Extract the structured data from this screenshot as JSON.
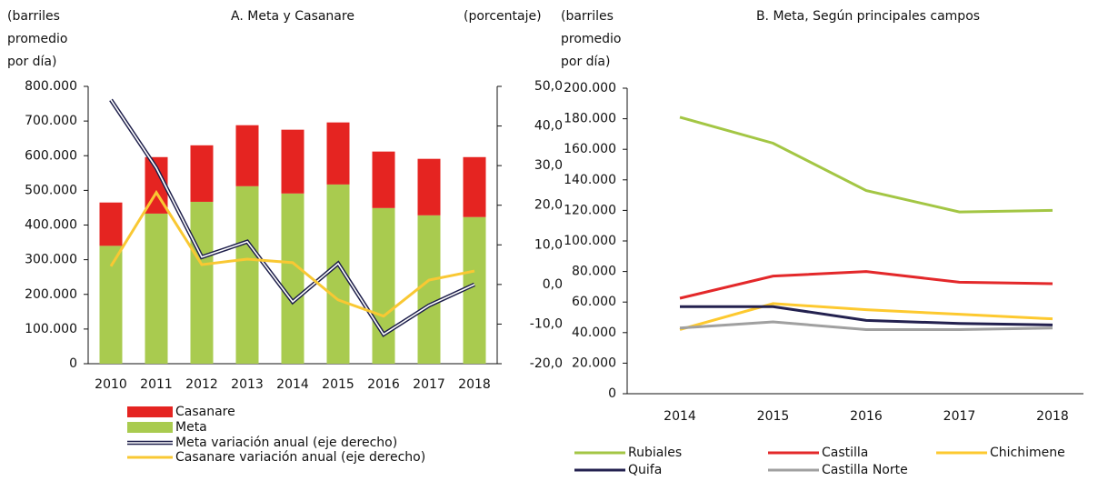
{
  "chart_data": [
    {
      "type": "bar",
      "title": "A. Meta y Casanare",
      "y_label": [
        "(barriles",
        "promedio",
        "por día)"
      ],
      "y2_label": "(porcentaje)",
      "categories": [
        "2010",
        "2011",
        "2012",
        "2013",
        "2014",
        "2015",
        "2016",
        "2017",
        "2018"
      ],
      "series": [
        {
          "name": "Casanare",
          "color": "#e52421",
          "values": [
            125000,
            163000,
            163000,
            176000,
            184000,
            179000,
            163000,
            163000,
            173000
          ]
        },
        {
          "name": "Meta",
          "color": "#a9cb4f",
          "values": [
            340000,
            433000,
            467000,
            512000,
            491000,
            517000,
            449000,
            428000,
            423000
          ]
        },
        {
          "name": "Meta variación anual (eje derecho)",
          "color": "#1e1f4b",
          "axis": "y2",
          "values": [
            46.6,
            29.4,
            6.9,
            10.8,
            -4.4,
            5.3,
            -12.6,
            -5.3,
            0.0
          ]
        },
        {
          "name": "Casanare variación anual (eje derecho)",
          "color": "#f9c833",
          "axis": "y2",
          "values": [
            4.6,
            23.2,
            5.0,
            6.4,
            5.5,
            -3.9,
            -8.0,
            1.1,
            3.4
          ]
        }
      ],
      "ylim": [
        0,
        800000
      ],
      "yticks": [
        0,
        {
          "value": 100000,
          "label": "100.000"
        },
        {
          "value": 200000,
          "label": "200.000"
        },
        {
          "value": 300000,
          "label": "300.000"
        },
        {
          "value": 400000,
          "label": "400.000"
        },
        {
          "value": 500000,
          "label": "500.000"
        },
        {
          "value": 600000,
          "label": "600.000"
        },
        {
          "value": 700000,
          "label": "700.000"
        },
        {
          "value": 800000,
          "label": "800.000"
        }
      ],
      "y2lim": [
        -20,
        50
      ],
      "y2ticks": [
        {
          "value": -20,
          "label": "-20,0"
        },
        {
          "value": -10,
          "label": "-10,0"
        },
        {
          "value": 0,
          "label": "0,0"
        },
        {
          "value": 10,
          "label": "10,0"
        },
        {
          "value": 20,
          "label": "20,0"
        },
        {
          "value": 30,
          "label": "30,0"
        },
        {
          "value": 40,
          "label": "40,0"
        },
        {
          "value": 50,
          "label": "50,0"
        }
      ],
      "stacked": true,
      "grid": false
    },
    {
      "type": "line",
      "title": "B. Meta, Según principales  campos",
      "y_label": [
        "(barriles",
        "promedio",
        "por día)"
      ],
      "categories": [
        "2014",
        "2015",
        "2016",
        "2017",
        "2018"
      ],
      "series": [
        {
          "name": "Rubiales",
          "color": "#a3c644",
          "values": [
            181000,
            164000,
            133000,
            119000,
            120000
          ]
        },
        {
          "name": "Castilla",
          "color": "#e3282a",
          "values": [
            62500,
            77000,
            80000,
            73000,
            72000
          ]
        },
        {
          "name": "Chichimene",
          "color": "#fdc92f",
          "values": [
            42000,
            59000,
            55000,
            52000,
            49000
          ]
        },
        {
          "name": "Quifa",
          "color": "#23214f",
          "values": [
            57000,
            57000,
            48000,
            46000,
            45000
          ]
        },
        {
          "name": "Castilla Norte",
          "color": "#a0a0a0",
          "values": [
            43000,
            47000,
            42000,
            42000,
            43000
          ]
        }
      ],
      "ylim": [
        0,
        200000
      ],
      "yticks": [
        0,
        {
          "value": 20000,
          "label": "20.000"
        },
        {
          "value": 40000,
          "label": "40.000"
        },
        {
          "value": 60000,
          "label": "60.000"
        },
        {
          "value": 80000,
          "label": "80.000"
        },
        {
          "value": 100000,
          "label": "100.000"
        },
        {
          "value": 120000,
          "label": "120.000"
        },
        {
          "value": 140000,
          "label": "140.000"
        },
        {
          "value": 160000,
          "label": "160.000"
        },
        {
          "value": 180000,
          "label": "180.000"
        },
        {
          "value": 200000,
          "label": "200.000"
        }
      ],
      "grid": false
    }
  ]
}
